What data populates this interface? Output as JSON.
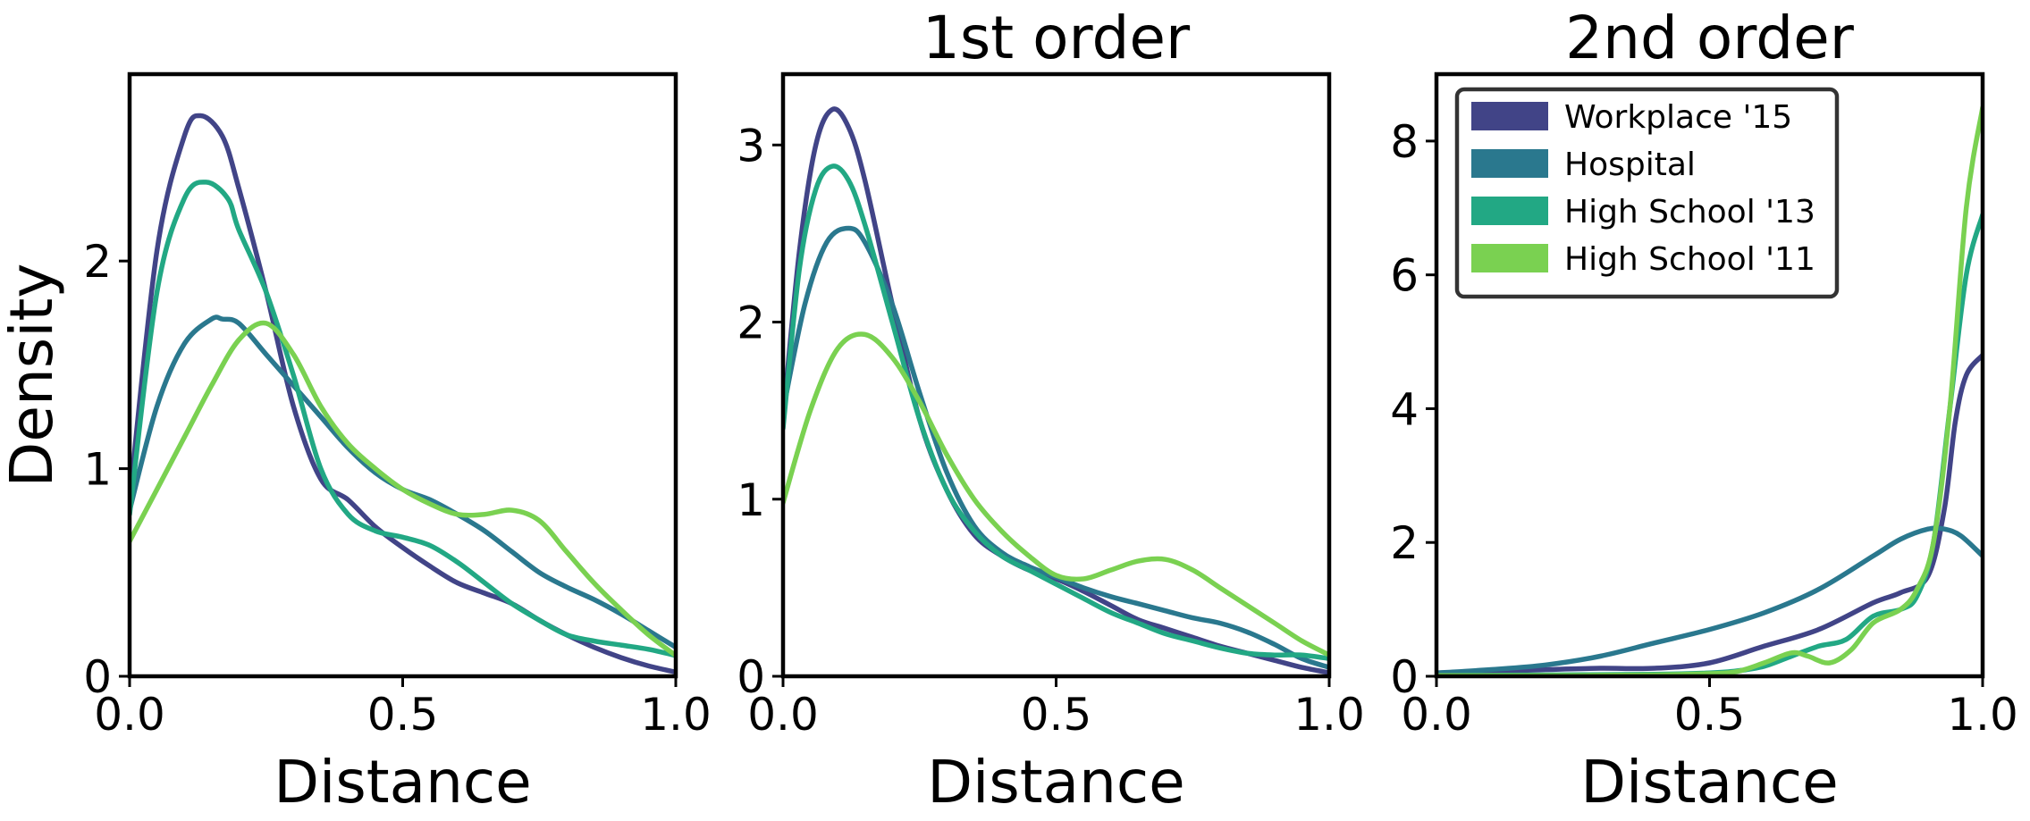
{
  "colors": {
    "workplace15": "#414487",
    "hospital": "#2a788e",
    "highschool13": "#22a884",
    "highschool11": "#7ad151",
    "axes": "#000000",
    "legend_frame": "#333333"
  },
  "legend": {
    "placement": "upper-left of third panel",
    "entries": [
      "Workplace '15",
      "Hospital",
      "High School '13",
      "High School '11"
    ]
  },
  "chart_data": [
    {
      "type": "line",
      "title": "",
      "xlabel": "Distance",
      "ylabel": "Density",
      "xlim": [
        0,
        1
      ],
      "ylim": [
        0,
        2.9
      ],
      "xticks": [
        "0.0",
        "0.5",
        "1.0"
      ],
      "yticks": [
        {
          "value": 0,
          "label": "0"
        },
        {
          "value": 1,
          "label": "1"
        },
        {
          "value": 2,
          "label": "2"
        }
      ],
      "grid": false,
      "series": [
        {
          "name": "Workplace '15",
          "color": "workplace15",
          "x": [
            0,
            0.05,
            0.1,
            0.13,
            0.17,
            0.2,
            0.25,
            0.3,
            0.35,
            0.4,
            0.45,
            0.5,
            0.55,
            0.6,
            0.65,
            0.7,
            0.75,
            0.8,
            0.85,
            0.9,
            0.95,
            1.0
          ],
          "y": [
            0.85,
            2.05,
            2.6,
            2.7,
            2.6,
            2.35,
            1.85,
            1.3,
            0.95,
            0.85,
            0.72,
            0.62,
            0.53,
            0.45,
            0.4,
            0.35,
            0.27,
            0.2,
            0.14,
            0.09,
            0.05,
            0.02
          ]
        },
        {
          "name": "Hospital",
          "color": "hospital",
          "x": [
            0,
            0.05,
            0.1,
            0.15,
            0.17,
            0.2,
            0.25,
            0.3,
            0.35,
            0.4,
            0.45,
            0.5,
            0.55,
            0.6,
            0.65,
            0.7,
            0.75,
            0.8,
            0.85,
            0.9,
            0.95,
            1.0
          ],
          "y": [
            0.8,
            1.3,
            1.6,
            1.72,
            1.72,
            1.7,
            1.55,
            1.4,
            1.25,
            1.1,
            0.98,
            0.9,
            0.85,
            0.78,
            0.7,
            0.6,
            0.5,
            0.43,
            0.37,
            0.3,
            0.22,
            0.14
          ]
        },
        {
          "name": "High School '13",
          "color": "highschool13",
          "x": [
            0,
            0.05,
            0.1,
            0.14,
            0.18,
            0.2,
            0.25,
            0.3,
            0.35,
            0.4,
            0.45,
            0.5,
            0.55,
            0.6,
            0.65,
            0.7,
            0.75,
            0.8,
            0.85,
            0.9,
            0.95,
            1.0
          ],
          "y": [
            0.78,
            1.85,
            2.3,
            2.38,
            2.3,
            2.15,
            1.85,
            1.45,
            1.0,
            0.78,
            0.7,
            0.67,
            0.63,
            0.55,
            0.45,
            0.35,
            0.27,
            0.2,
            0.17,
            0.15,
            0.13,
            0.1
          ]
        },
        {
          "name": "High School '11",
          "color": "highschool11",
          "x": [
            0,
            0.05,
            0.1,
            0.15,
            0.2,
            0.25,
            0.3,
            0.35,
            0.4,
            0.45,
            0.5,
            0.55,
            0.6,
            0.65,
            0.7,
            0.75,
            0.8,
            0.85,
            0.9,
            0.95,
            1.0
          ],
          "y": [
            0.65,
            0.9,
            1.15,
            1.4,
            1.62,
            1.7,
            1.55,
            1.3,
            1.12,
            1.0,
            0.9,
            0.83,
            0.78,
            0.78,
            0.8,
            0.75,
            0.6,
            0.45,
            0.32,
            0.2,
            0.1
          ]
        }
      ]
    },
    {
      "type": "line",
      "title": "1st order",
      "xlabel": "Distance",
      "ylabel": "",
      "xlim": [
        0,
        1
      ],
      "ylim": [
        0,
        3.4
      ],
      "xticks": [
        "0.0",
        "0.5",
        "1.0"
      ],
      "yticks": [
        {
          "value": 0,
          "label": "0"
        },
        {
          "value": 1,
          "label": "1"
        },
        {
          "value": 2,
          "label": "2"
        },
        {
          "value": 3,
          "label": "3"
        }
      ],
      "grid": false,
      "series": [
        {
          "name": "Workplace '15",
          "color": "workplace15",
          "x": [
            0,
            0.03,
            0.06,
            0.09,
            0.12,
            0.15,
            0.2,
            0.25,
            0.3,
            0.35,
            0.4,
            0.45,
            0.5,
            0.55,
            0.6,
            0.65,
            0.7,
            0.75,
            0.8,
            0.85,
            0.9,
            0.95,
            1.0
          ],
          "y": [
            1.45,
            2.4,
            3.0,
            3.2,
            3.1,
            2.8,
            2.1,
            1.45,
            1.05,
            0.8,
            0.68,
            0.6,
            0.55,
            0.48,
            0.4,
            0.32,
            0.27,
            0.22,
            0.17,
            0.13,
            0.09,
            0.05,
            0.02
          ]
        },
        {
          "name": "Hospital",
          "color": "hospital",
          "x": [
            0,
            0.04,
            0.08,
            0.12,
            0.15,
            0.2,
            0.25,
            0.3,
            0.35,
            0.4,
            0.45,
            0.5,
            0.55,
            0.6,
            0.65,
            0.7,
            0.75,
            0.8,
            0.85,
            0.9,
            0.95,
            1.0
          ],
          "y": [
            1.5,
            2.1,
            2.45,
            2.53,
            2.45,
            2.1,
            1.6,
            1.15,
            0.85,
            0.7,
            0.62,
            0.56,
            0.5,
            0.45,
            0.41,
            0.37,
            0.33,
            0.3,
            0.25,
            0.18,
            0.1,
            0.05
          ]
        },
        {
          "name": "High School '13",
          "color": "highschool13",
          "x": [
            0,
            0.03,
            0.06,
            0.09,
            0.12,
            0.15,
            0.2,
            0.25,
            0.3,
            0.35,
            0.4,
            0.45,
            0.5,
            0.55,
            0.6,
            0.65,
            0.7,
            0.75,
            0.8,
            0.85,
            0.9,
            0.95,
            1.0
          ],
          "y": [
            1.4,
            2.3,
            2.75,
            2.88,
            2.8,
            2.55,
            2.0,
            1.45,
            1.05,
            0.82,
            0.68,
            0.6,
            0.52,
            0.44,
            0.36,
            0.3,
            0.24,
            0.2,
            0.16,
            0.13,
            0.12,
            0.12,
            0.1
          ]
        },
        {
          "name": "High School '11",
          "color": "highschool11",
          "x": [
            0,
            0.05,
            0.1,
            0.15,
            0.2,
            0.25,
            0.3,
            0.35,
            0.4,
            0.45,
            0.5,
            0.55,
            0.6,
            0.65,
            0.7,
            0.75,
            0.8,
            0.85,
            0.9,
            0.95,
            1.0
          ],
          "y": [
            0.98,
            1.5,
            1.85,
            1.93,
            1.8,
            1.55,
            1.25,
            1.0,
            0.82,
            0.68,
            0.57,
            0.55,
            0.6,
            0.65,
            0.66,
            0.6,
            0.5,
            0.4,
            0.3,
            0.2,
            0.12
          ]
        }
      ]
    },
    {
      "type": "line",
      "title": "2nd order",
      "xlabel": "Distance",
      "ylabel": "",
      "xlim": [
        0,
        1
      ],
      "ylim": [
        0,
        9
      ],
      "xticks": [
        "0.0",
        "0.5",
        "1.0"
      ],
      "yticks": [
        {
          "value": 0,
          "label": "0"
        },
        {
          "value": 2,
          "label": "2"
        },
        {
          "value": 4,
          "label": "4"
        },
        {
          "value": 6,
          "label": "6"
        },
        {
          "value": 8,
          "label": "8"
        }
      ],
      "grid": false,
      "series": [
        {
          "name": "Workplace '15",
          "color": "workplace15",
          "x": [
            0,
            0.1,
            0.2,
            0.3,
            0.4,
            0.5,
            0.6,
            0.7,
            0.8,
            0.85,
            0.9,
            0.93,
            0.95,
            0.97,
            1.0
          ],
          "y": [
            0.05,
            0.07,
            0.1,
            0.12,
            0.12,
            0.2,
            0.45,
            0.7,
            1.1,
            1.25,
            1.5,
            2.5,
            3.8,
            4.5,
            4.8
          ]
        },
        {
          "name": "Hospital",
          "color": "hospital",
          "x": [
            0,
            0.1,
            0.2,
            0.3,
            0.4,
            0.5,
            0.6,
            0.7,
            0.8,
            0.85,
            0.9,
            0.93,
            0.96,
            1.0
          ],
          "y": [
            0.05,
            0.1,
            0.17,
            0.3,
            0.5,
            0.7,
            0.95,
            1.3,
            1.8,
            2.05,
            2.2,
            2.2,
            2.1,
            1.8
          ]
        },
        {
          "name": "High School '13",
          "color": "highschool13",
          "x": [
            0,
            0.2,
            0.4,
            0.5,
            0.55,
            0.6,
            0.65,
            0.7,
            0.75,
            0.8,
            0.85,
            0.88,
            0.91,
            0.94,
            0.97,
            1.0
          ],
          "y": [
            0.01,
            0.02,
            0.03,
            0.05,
            0.08,
            0.15,
            0.3,
            0.45,
            0.55,
            0.9,
            1.0,
            1.2,
            2.0,
            4.0,
            6.0,
            6.9
          ]
        },
        {
          "name": "High School '11",
          "color": "highschool11",
          "x": [
            0,
            0.2,
            0.4,
            0.5,
            0.55,
            0.6,
            0.65,
            0.68,
            0.72,
            0.76,
            0.8,
            0.85,
            0.88,
            0.91,
            0.94,
            0.97,
            1.0
          ],
          "y": [
            0.01,
            0.01,
            0.02,
            0.04,
            0.07,
            0.2,
            0.35,
            0.3,
            0.2,
            0.4,
            0.8,
            1.0,
            1.3,
            2.0,
            4.0,
            7.0,
            8.5
          ]
        }
      ]
    }
  ]
}
